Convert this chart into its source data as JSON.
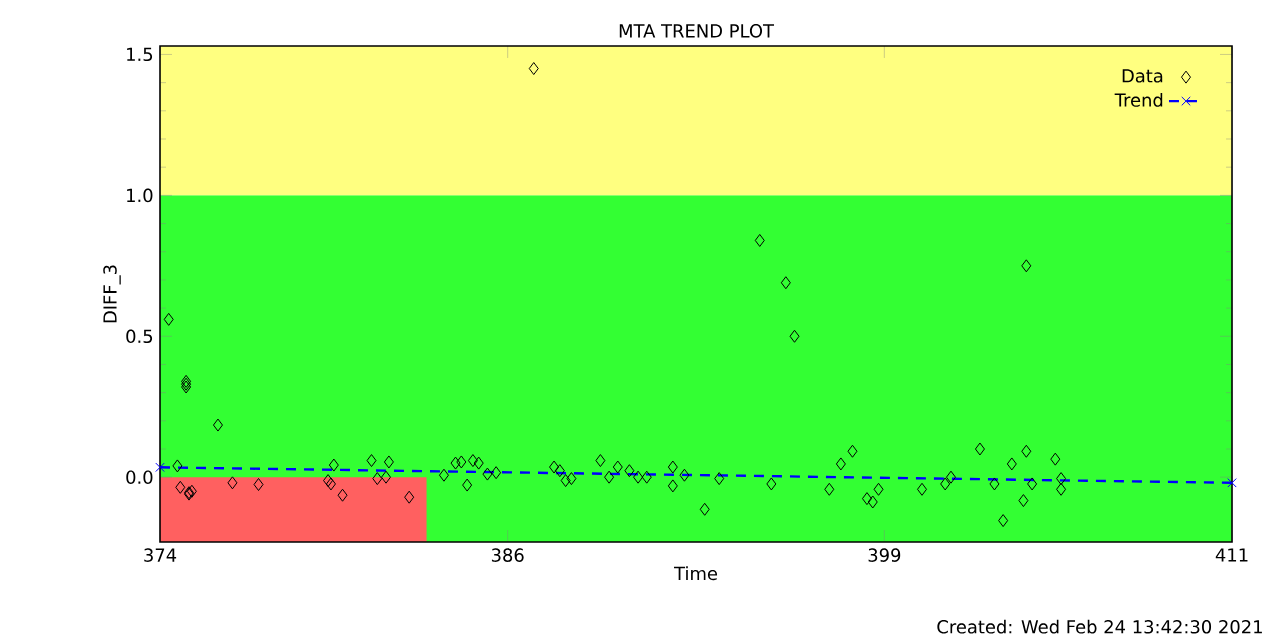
{
  "chart_data": {
    "type": "scatter",
    "title": "MTA TREND PLOT",
    "xlabel": "Time",
    "ylabel": "DIFF_3",
    "annotations": [
      "Created: Wed Feb 24 13:42:30 2021"
    ],
    "xlim": [
      374,
      411
    ],
    "ylim": [
      -0.23,
      1.53
    ],
    "xticks": [
      374,
      386,
      399,
      411
    ],
    "yticks": [
      {
        "value": 0,
        "label": "0.0"
      },
      {
        "value": 0.5,
        "label": "0.5"
      },
      {
        "value": 1,
        "label": "1.0"
      },
      {
        "value": 1.5,
        "label": "1.5"
      }
    ],
    "bands": [
      {
        "axis": "y",
        "from": -0.23,
        "to": 1.0,
        "color": "#33ff33"
      },
      {
        "axis": "y",
        "from": 1.0,
        "to": 1.53,
        "color": "#ffff80"
      },
      {
        "axis": "x",
        "from": 374,
        "to": 383.2,
        "color": "#ff6060"
      }
    ],
    "legend": "top right",
    "grid": false,
    "series": [
      {
        "name": "Data",
        "marker": "diamond",
        "color": "#000000",
        "x": [
          374.3,
          374.9,
          374.9,
          374.9,
          376.0,
          374.6,
          374.7,
          375.0,
          375.0,
          375.1,
          376.5,
          377.4,
          379.8,
          379.9,
          380.0,
          380.3,
          381.3,
          381.5,
          381.9,
          381.8,
          382.6,
          383.8,
          384.2,
          384.4,
          384.6,
          384.8,
          385.0,
          385.3,
          385.6,
          386.9,
          387.6,
          387.8,
          388.0,
          388.2,
          389.2,
          389.5,
          389.8,
          390.2,
          390.5,
          390.8,
          391.7,
          391.7,
          392.1,
          392.8,
          393.3,
          394.7,
          395.1,
          395.6,
          395.9,
          397.1,
          397.5,
          397.9,
          398.4,
          398.6,
          398.8,
          400.3,
          401.1,
          401.3,
          402.3,
          402.8,
          403.1,
          403.4,
          403.8,
          403.9,
          403.9,
          404.1,
          404.9,
          405.1,
          405.1
        ],
        "values": [
          0.56,
          0.33,
          0.34,
          0.32,
          0.185,
          0.04,
          -0.036,
          -0.055,
          -0.06,
          -0.05,
          -0.02,
          -0.026,
          -0.012,
          -0.024,
          0.043,
          -0.064,
          0.059,
          -0.005,
          0.054,
          0.0,
          -0.071,
          0.007,
          0.05,
          0.054,
          -0.028,
          0.059,
          0.05,
          0.011,
          0.016,
          1.45,
          0.036,
          0.023,
          -0.012,
          -0.005,
          0.059,
          0.0,
          0.036,
          0.023,
          0.0,
          0.0,
          0.036,
          -0.031,
          0.007,
          -0.114,
          -0.005,
          0.84,
          -0.024,
          0.69,
          0.5,
          -0.043,
          0.047,
          0.092,
          -0.076,
          -0.088,
          -0.043,
          -0.043,
          -0.024,
          0.0,
          0.1,
          -0.024,
          -0.154,
          0.047,
          -0.083,
          0.092,
          0.75,
          -0.024,
          0.064,
          -0.005,
          -0.043
        ]
      },
      {
        "name": "Trend",
        "type": "line",
        "marker": "cross",
        "line_style": "dashed",
        "color": "#0000ff",
        "x": [
          374,
          411
        ],
        "values": [
          0.035,
          -0.02
        ]
      }
    ]
  }
}
